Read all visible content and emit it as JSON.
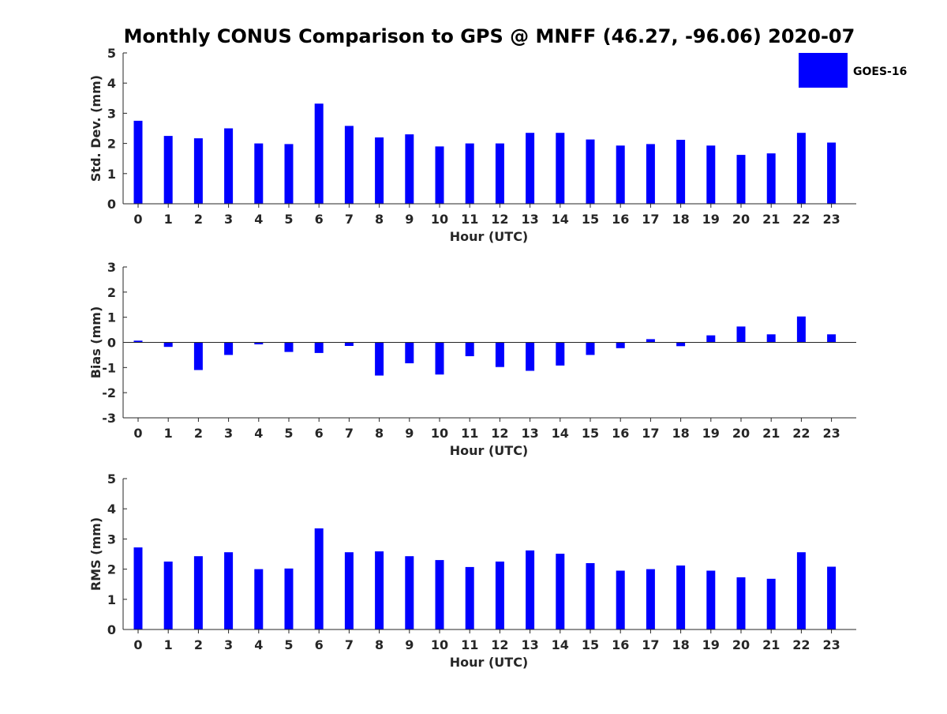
{
  "title": "Monthly CONUS Comparison to GPS @ MNFF (46.27, -96.06) 2020-07",
  "legend": {
    "label": "GOES-16",
    "placement": "top-right",
    "color": "#0000ff"
  },
  "chart_data": [
    {
      "type": "bar",
      "xlabel": "Hour (UTC)",
      "ylabel": "Std. Dev. (mm)",
      "ylim": [
        0,
        5
      ],
      "yticks": [
        0,
        1,
        2,
        3,
        4,
        5
      ],
      "categories": [
        "0",
        "1",
        "2",
        "3",
        "4",
        "5",
        "6",
        "7",
        "8",
        "9",
        "10",
        "11",
        "12",
        "13",
        "14",
        "15",
        "16",
        "17",
        "18",
        "19",
        "20",
        "21",
        "22",
        "23"
      ],
      "series": [
        {
          "name": "GOES-16",
          "color": "#0000ff",
          "values": [
            2.75,
            2.25,
            2.17,
            2.5,
            2.0,
            1.98,
            3.32,
            2.58,
            2.2,
            2.3,
            1.9,
            2.0,
            2.0,
            2.35,
            2.35,
            2.13,
            1.93,
            1.98,
            2.12,
            1.93,
            1.62,
            1.67,
            2.35,
            2.03
          ]
        }
      ],
      "grid": false
    },
    {
      "type": "bar",
      "xlabel": "Hour (UTC)",
      "ylabel": "Bias (mm)",
      "ylim": [
        -3,
        3
      ],
      "yticks": [
        -3,
        -2,
        -1,
        0,
        1,
        2,
        3
      ],
      "categories": [
        "0",
        "1",
        "2",
        "3",
        "4",
        "5",
        "6",
        "7",
        "8",
        "9",
        "10",
        "11",
        "12",
        "13",
        "14",
        "15",
        "16",
        "17",
        "18",
        "19",
        "20",
        "21",
        "22",
        "23"
      ],
      "series": [
        {
          "name": "GOES-16",
          "color": "#0000ff",
          "values": [
            0.07,
            -0.18,
            -1.1,
            -0.5,
            -0.08,
            -0.38,
            -0.42,
            -0.14,
            -1.32,
            -0.83,
            -1.28,
            -0.55,
            -0.98,
            -1.13,
            -0.92,
            -0.5,
            -0.23,
            0.13,
            -0.15,
            0.28,
            0.63,
            0.32,
            1.03,
            0.32
          ]
        }
      ],
      "grid": false
    },
    {
      "type": "bar",
      "xlabel": "Hour (UTC)",
      "ylabel": "RMS (mm)",
      "ylim": [
        0,
        5
      ],
      "yticks": [
        0,
        1,
        2,
        3,
        4,
        5
      ],
      "categories": [
        "0",
        "1",
        "2",
        "3",
        "4",
        "5",
        "6",
        "7",
        "8",
        "9",
        "10",
        "11",
        "12",
        "13",
        "14",
        "15",
        "16",
        "17",
        "18",
        "19",
        "20",
        "21",
        "22",
        "23"
      ],
      "series": [
        {
          "name": "GOES-16",
          "color": "#0000ff",
          "values": [
            2.72,
            2.25,
            2.43,
            2.56,
            2.0,
            2.02,
            3.35,
            2.56,
            2.59,
            2.43,
            2.3,
            2.07,
            2.25,
            2.62,
            2.51,
            2.2,
            1.95,
            2.0,
            2.12,
            1.95,
            1.73,
            1.68,
            2.56,
            2.08
          ]
        }
      ],
      "grid": false
    }
  ]
}
